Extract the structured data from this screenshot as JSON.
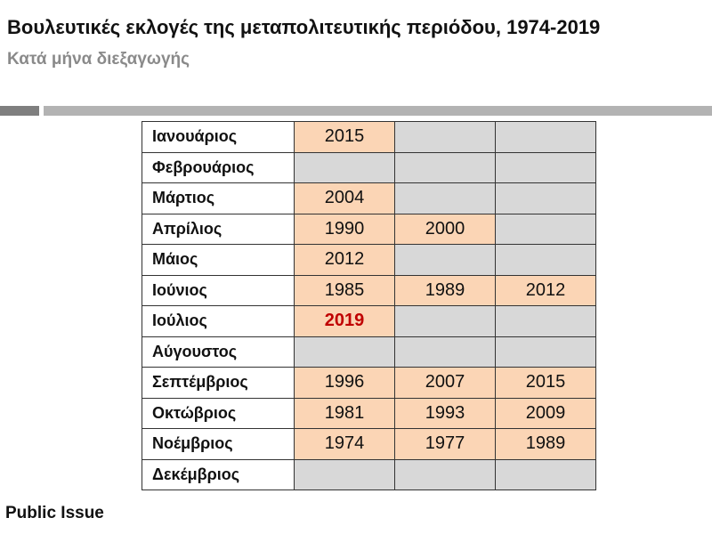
{
  "title": "Βουλευτικές εκλογές της μεταπολιτευτικής περιόδου, 1974-2019",
  "subtitle": "Κατά μήνα διεξαγωγής",
  "source": "Public Issue",
  "colors": {
    "filled": "#fbd5b5",
    "empty": "#d8d8d8",
    "highlight": "#c00000"
  },
  "chart_data": {
    "type": "table",
    "highlight_value": "2019",
    "rows": [
      {
        "month": "Ιανουάριος",
        "years": [
          "2015",
          "",
          ""
        ]
      },
      {
        "month": "Φεβρουάριος",
        "years": [
          "",
          "",
          ""
        ]
      },
      {
        "month": "Μάρτιος",
        "years": [
          "2004",
          "",
          ""
        ]
      },
      {
        "month": "Απρίλιος",
        "years": [
          "1990",
          "2000",
          ""
        ]
      },
      {
        "month": "Μάιος",
        "years": [
          "2012",
          "",
          ""
        ]
      },
      {
        "month": "Ιούνιος",
        "years": [
          "1985",
          "1989",
          "2012"
        ]
      },
      {
        "month": "Ιούλιος",
        "years": [
          "2019",
          "",
          ""
        ]
      },
      {
        "month": "Αύγουστος",
        "years": [
          "",
          "",
          ""
        ]
      },
      {
        "month": "Σεπτέμβριος",
        "years": [
          "1996",
          "2007",
          "2015"
        ]
      },
      {
        "month": "Οκτώβριος",
        "years": [
          "1981",
          "1993",
          "2009"
        ]
      },
      {
        "month": "Νοέμβριος",
        "years": [
          "1974",
          "1977",
          "1989"
        ]
      },
      {
        "month": "Δεκέμβριος",
        "years": [
          "",
          "",
          ""
        ]
      }
    ]
  }
}
